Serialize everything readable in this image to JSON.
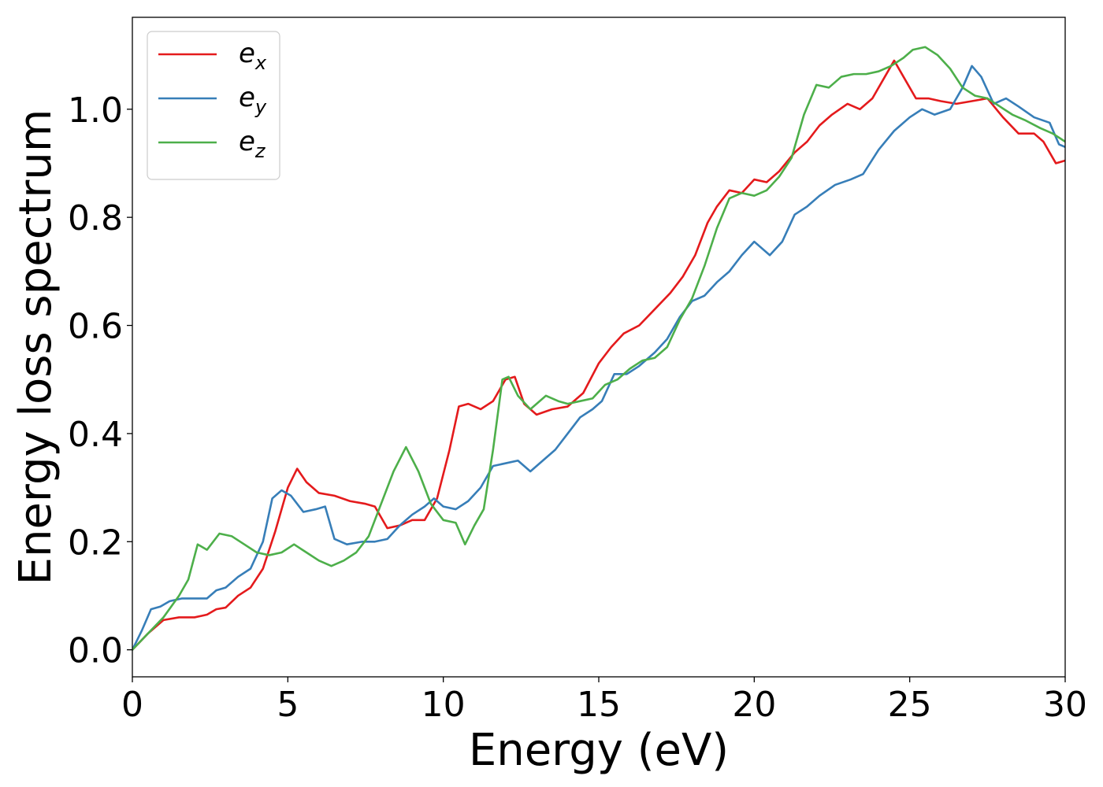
{
  "chart_data": {
    "type": "line",
    "title": "",
    "xlabel": "Energy (eV)",
    "ylabel": "Energy loss spectrum",
    "xlim": [
      0,
      30
    ],
    "ylim": [
      -0.05,
      1.17
    ],
    "xticks": [
      0,
      5,
      10,
      15,
      20,
      25,
      30
    ],
    "xtick_labels": [
      "0",
      "5",
      "10",
      "15",
      "20",
      "25",
      "30"
    ],
    "yticks": [
      0.0,
      0.2,
      0.4,
      0.6,
      0.8,
      1.0
    ],
    "ytick_labels": [
      "0.0",
      "0.2",
      "0.4",
      "0.6",
      "0.8",
      "1.0"
    ],
    "grid": false,
    "legend_position": "top-left",
    "series": [
      {
        "name": "e",
        "subscript": "x",
        "color": "#e41a1c",
        "points": [
          [
            0,
            0
          ],
          [
            0.5,
            0.03
          ],
          [
            1,
            0.055
          ],
          [
            1.5,
            0.06
          ],
          [
            2,
            0.06
          ],
          [
            2.4,
            0.065
          ],
          [
            2.7,
            0.075
          ],
          [
            3,
            0.078
          ],
          [
            3.4,
            0.1
          ],
          [
            3.8,
            0.115
          ],
          [
            4.2,
            0.15
          ],
          [
            4.6,
            0.22
          ],
          [
            5,
            0.3
          ],
          [
            5.3,
            0.335
          ],
          [
            5.6,
            0.31
          ],
          [
            6,
            0.29
          ],
          [
            6.5,
            0.285
          ],
          [
            7,
            0.275
          ],
          [
            7.5,
            0.27
          ],
          [
            7.8,
            0.265
          ],
          [
            8.2,
            0.225
          ],
          [
            8.6,
            0.23
          ],
          [
            9,
            0.24
          ],
          [
            9.4,
            0.24
          ],
          [
            9.8,
            0.28
          ],
          [
            10.2,
            0.37
          ],
          [
            10.5,
            0.45
          ],
          [
            10.8,
            0.455
          ],
          [
            11.2,
            0.445
          ],
          [
            11.6,
            0.46
          ],
          [
            12,
            0.5
          ],
          [
            12.3,
            0.505
          ],
          [
            12.6,
            0.455
          ],
          [
            13,
            0.435
          ],
          [
            13.5,
            0.445
          ],
          [
            14,
            0.45
          ],
          [
            14.5,
            0.475
          ],
          [
            15,
            0.53
          ],
          [
            15.4,
            0.56
          ],
          [
            15.8,
            0.585
          ],
          [
            16.3,
            0.6
          ],
          [
            16.8,
            0.63
          ],
          [
            17.3,
            0.66
          ],
          [
            17.7,
            0.69
          ],
          [
            18.1,
            0.73
          ],
          [
            18.5,
            0.79
          ],
          [
            18.8,
            0.82
          ],
          [
            19.2,
            0.85
          ],
          [
            19.6,
            0.845
          ],
          [
            20,
            0.87
          ],
          [
            20.4,
            0.865
          ],
          [
            20.8,
            0.885
          ],
          [
            21.3,
            0.92
          ],
          [
            21.7,
            0.94
          ],
          [
            22.1,
            0.97
          ],
          [
            22.5,
            0.99
          ],
          [
            23,
            1.01
          ],
          [
            23.4,
            1.0
          ],
          [
            23.8,
            1.02
          ],
          [
            24.2,
            1.06
          ],
          [
            24.5,
            1.09
          ],
          [
            24.8,
            1.06
          ],
          [
            25.2,
            1.02
          ],
          [
            25.6,
            1.02
          ],
          [
            26,
            1.015
          ],
          [
            26.5,
            1.01
          ],
          [
            27,
            1.015
          ],
          [
            27.5,
            1.02
          ],
          [
            28,
            0.985
          ],
          [
            28.5,
            0.955
          ],
          [
            29,
            0.955
          ],
          [
            29.3,
            0.94
          ],
          [
            29.7,
            0.9
          ],
          [
            30,
            0.905
          ]
        ]
      },
      {
        "name": "e",
        "subscript": "y",
        "color": "#377eb8",
        "points": [
          [
            0,
            0
          ],
          [
            0.3,
            0.035
          ],
          [
            0.6,
            0.075
          ],
          [
            0.9,
            0.08
          ],
          [
            1.2,
            0.09
          ],
          [
            1.6,
            0.095
          ],
          [
            2,
            0.095
          ],
          [
            2.4,
            0.095
          ],
          [
            2.7,
            0.11
          ],
          [
            3,
            0.115
          ],
          [
            3.4,
            0.135
          ],
          [
            3.8,
            0.15
          ],
          [
            4.2,
            0.2
          ],
          [
            4.5,
            0.28
          ],
          [
            4.8,
            0.295
          ],
          [
            5.1,
            0.285
          ],
          [
            5.5,
            0.255
          ],
          [
            5.9,
            0.26
          ],
          [
            6.2,
            0.265
          ],
          [
            6.5,
            0.205
          ],
          [
            6.9,
            0.195
          ],
          [
            7.4,
            0.2
          ],
          [
            7.8,
            0.2
          ],
          [
            8.2,
            0.205
          ],
          [
            8.6,
            0.23
          ],
          [
            9,
            0.25
          ],
          [
            9.4,
            0.265
          ],
          [
            9.7,
            0.28
          ],
          [
            10,
            0.265
          ],
          [
            10.4,
            0.26
          ],
          [
            10.8,
            0.275
          ],
          [
            11.2,
            0.3
          ],
          [
            11.6,
            0.34
          ],
          [
            12,
            0.345
          ],
          [
            12.4,
            0.35
          ],
          [
            12.8,
            0.33
          ],
          [
            13.2,
            0.35
          ],
          [
            13.6,
            0.37
          ],
          [
            14,
            0.4
          ],
          [
            14.4,
            0.43
          ],
          [
            14.8,
            0.445
          ],
          [
            15.1,
            0.46
          ],
          [
            15.5,
            0.51
          ],
          [
            15.9,
            0.51
          ],
          [
            16.3,
            0.525
          ],
          [
            16.8,
            0.55
          ],
          [
            17.2,
            0.575
          ],
          [
            17.6,
            0.615
          ],
          [
            18,
            0.645
          ],
          [
            18.4,
            0.655
          ],
          [
            18.8,
            0.68
          ],
          [
            19.2,
            0.7
          ],
          [
            19.6,
            0.73
          ],
          [
            20,
            0.755
          ],
          [
            20.5,
            0.73
          ],
          [
            20.9,
            0.755
          ],
          [
            21.3,
            0.805
          ],
          [
            21.7,
            0.82
          ],
          [
            22.1,
            0.84
          ],
          [
            22.6,
            0.86
          ],
          [
            23.1,
            0.87
          ],
          [
            23.5,
            0.88
          ],
          [
            24,
            0.925
          ],
          [
            24.5,
            0.96
          ],
          [
            25,
            0.985
          ],
          [
            25.4,
            1.0
          ],
          [
            25.8,
            0.99
          ],
          [
            26.3,
            1.0
          ],
          [
            26.7,
            1.04
          ],
          [
            27,
            1.08
          ],
          [
            27.3,
            1.06
          ],
          [
            27.7,
            1.01
          ],
          [
            28.1,
            1.02
          ],
          [
            28.5,
            1.005
          ],
          [
            29,
            0.985
          ],
          [
            29.5,
            0.975
          ],
          [
            29.8,
            0.935
          ],
          [
            30,
            0.93
          ]
        ]
      },
      {
        "name": "e",
        "subscript": "z",
        "color": "#4daf4a",
        "points": [
          [
            0,
            0
          ],
          [
            0.5,
            0.03
          ],
          [
            1,
            0.06
          ],
          [
            1.5,
            0.1
          ],
          [
            1.8,
            0.13
          ],
          [
            2.1,
            0.195
          ],
          [
            2.4,
            0.185
          ],
          [
            2.8,
            0.215
          ],
          [
            3.2,
            0.21
          ],
          [
            3.6,
            0.195
          ],
          [
            4,
            0.18
          ],
          [
            4.4,
            0.175
          ],
          [
            4.8,
            0.18
          ],
          [
            5.2,
            0.195
          ],
          [
            5.6,
            0.18
          ],
          [
            6,
            0.165
          ],
          [
            6.4,
            0.155
          ],
          [
            6.8,
            0.165
          ],
          [
            7.2,
            0.18
          ],
          [
            7.6,
            0.21
          ],
          [
            8,
            0.27
          ],
          [
            8.4,
            0.33
          ],
          [
            8.8,
            0.375
          ],
          [
            9.2,
            0.33
          ],
          [
            9.6,
            0.27
          ],
          [
            10,
            0.24
          ],
          [
            10.4,
            0.235
          ],
          [
            10.7,
            0.195
          ],
          [
            11,
            0.23
          ],
          [
            11.3,
            0.26
          ],
          [
            11.6,
            0.37
          ],
          [
            11.9,
            0.5
          ],
          [
            12.1,
            0.505
          ],
          [
            12.4,
            0.47
          ],
          [
            12.8,
            0.445
          ],
          [
            13.3,
            0.47
          ],
          [
            13.7,
            0.46
          ],
          [
            14,
            0.455
          ],
          [
            14.4,
            0.46
          ],
          [
            14.8,
            0.465
          ],
          [
            15.2,
            0.49
          ],
          [
            15.6,
            0.5
          ],
          [
            16,
            0.52
          ],
          [
            16.4,
            0.535
          ],
          [
            16.8,
            0.54
          ],
          [
            17.2,
            0.56
          ],
          [
            17.6,
            0.61
          ],
          [
            18,
            0.65
          ],
          [
            18.4,
            0.71
          ],
          [
            18.8,
            0.78
          ],
          [
            19.2,
            0.835
          ],
          [
            19.6,
            0.845
          ],
          [
            20,
            0.84
          ],
          [
            20.4,
            0.85
          ],
          [
            20.8,
            0.875
          ],
          [
            21.2,
            0.91
          ],
          [
            21.6,
            0.99
          ],
          [
            22,
            1.045
          ],
          [
            22.4,
            1.04
          ],
          [
            22.8,
            1.06
          ],
          [
            23.2,
            1.065
          ],
          [
            23.6,
            1.065
          ],
          [
            24,
            1.07
          ],
          [
            24.4,
            1.08
          ],
          [
            24.8,
            1.095
          ],
          [
            25.1,
            1.11
          ],
          [
            25.5,
            1.115
          ],
          [
            25.9,
            1.1
          ],
          [
            26.3,
            1.075
          ],
          [
            26.7,
            1.04
          ],
          [
            27.1,
            1.025
          ],
          [
            27.5,
            1.02
          ],
          [
            27.9,
            1.005
          ],
          [
            28.3,
            0.99
          ],
          [
            28.7,
            0.98
          ],
          [
            29.2,
            0.965
          ],
          [
            29.6,
            0.955
          ],
          [
            30,
            0.94
          ]
        ]
      }
    ]
  }
}
